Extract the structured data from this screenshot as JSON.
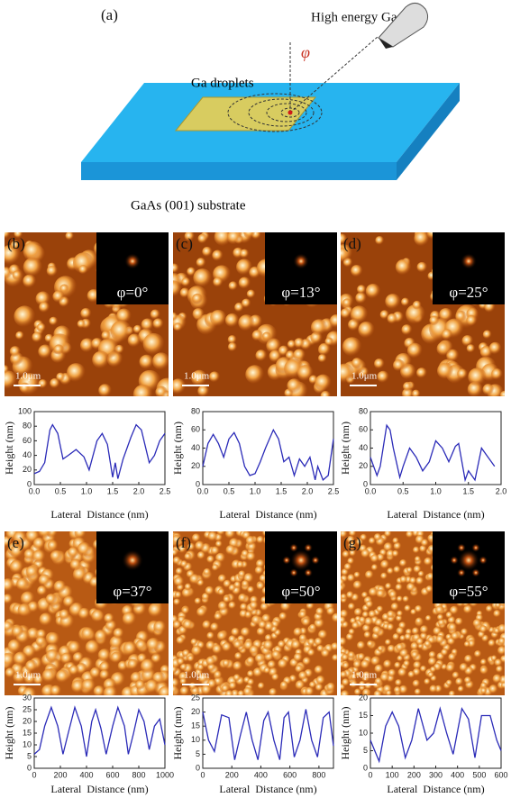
{
  "schematic": {
    "label": "(a)",
    "ion": "High energy Ga ion",
    "droplets": "Ga droplets",
    "angle": "φ",
    "substrate": "GaAs (001) substrate"
  },
  "images": [
    {
      "label": "(b)",
      "angle": "φ=0°",
      "scale": "1.0μm"
    },
    {
      "label": "(c)",
      "angle": "φ=13°",
      "scale": "1.0μm"
    },
    {
      "label": "(d)",
      "angle": "φ=25°",
      "scale": "1.0μm"
    },
    {
      "label": "(e)",
      "angle": "φ=37°",
      "scale": "1.0μm"
    },
    {
      "label": "(f)",
      "angle": "φ=50°",
      "scale": "1.0μm"
    },
    {
      "label": "(g)",
      "angle": "φ=55°",
      "scale": "1.0μm"
    }
  ],
  "chart_data": [
    {
      "type": "line",
      "x_label": "Lateral  Distance (nm)",
      "y_label": "Height (nm)",
      "color": "#2b2bb8",
      "x": [
        0,
        0.1,
        0.2,
        0.3,
        0.35,
        0.45,
        0.55,
        0.65,
        0.8,
        0.95,
        1.05,
        1.2,
        1.3,
        1.4,
        1.5,
        1.55,
        1.6,
        1.7,
        1.85,
        1.95,
        2.05,
        2.2,
        2.3,
        2.4,
        2.5
      ],
      "values": [
        15,
        18,
        30,
        75,
        82,
        70,
        35,
        40,
        48,
        38,
        20,
        60,
        70,
        55,
        10,
        30,
        8,
        35,
        65,
        82,
        75,
        30,
        40,
        60,
        70
      ],
      "xlim": [
        0,
        2.5
      ],
      "xticks": [
        {
          "value": 0,
          "label": "0.0"
        },
        0.5,
        {
          "value": 1,
          "label": "1.0"
        },
        1.5,
        {
          "value": 2,
          "label": "2.0"
        },
        2.5
      ],
      "ylim": [
        0,
        100
      ],
      "yticks": [
        0,
        20,
        40,
        60,
        80,
        100
      ]
    },
    {
      "type": "line",
      "x_label": "Lateral  Distance (nm)",
      "y_label": "Height (nm)",
      "color": "#2b2bb8",
      "x": [
        0,
        0.1,
        0.2,
        0.3,
        0.4,
        0.5,
        0.6,
        0.7,
        0.8,
        0.9,
        1.0,
        1.1,
        1.2,
        1.35,
        1.45,
        1.55,
        1.65,
        1.75,
        1.85,
        1.95,
        2.05,
        2.15,
        2.2,
        2.3,
        2.4,
        2.5
      ],
      "values": [
        20,
        45,
        55,
        45,
        30,
        50,
        57,
        45,
        20,
        10,
        12,
        25,
        40,
        60,
        50,
        25,
        30,
        10,
        28,
        20,
        30,
        5,
        20,
        5,
        10,
        50
      ],
      "xlim": [
        0,
        2.5
      ],
      "xticks": [
        {
          "value": 0,
          "label": "0.0"
        },
        0.5,
        {
          "value": 1,
          "label": "1.0"
        },
        1.5,
        {
          "value": 2,
          "label": "2.0"
        },
        2.5
      ],
      "ylim": [
        0,
        80
      ],
      "yticks": [
        0,
        20,
        40,
        60,
        80
      ]
    },
    {
      "type": "line",
      "x_label": "Lateral  Distance (nm)",
      "y_label": "Height (nm)",
      "color": "#2b2bb8",
      "x": [
        0,
        0.05,
        0.1,
        0.15,
        0.25,
        0.3,
        0.35,
        0.45,
        0.5,
        0.6,
        0.7,
        0.8,
        0.9,
        1.0,
        1.1,
        1.2,
        1.3,
        1.35,
        1.45,
        1.5,
        1.6,
        1.7,
        1.8,
        1.9
      ],
      "values": [
        30,
        20,
        10,
        20,
        65,
        60,
        40,
        8,
        20,
        40,
        30,
        15,
        25,
        48,
        40,
        25,
        42,
        45,
        5,
        15,
        5,
        40,
        30,
        20
      ],
      "xlim": [
        0,
        2
      ],
      "xticks": [
        {
          "value": 0,
          "label": "0.0"
        },
        0.5,
        {
          "value": 1,
          "label": "1.0"
        },
        1.5,
        {
          "value": 2,
          "label": "2.0"
        }
      ],
      "ylim": [
        0,
        80
      ],
      "yticks": [
        0,
        20,
        40,
        60,
        80
      ]
    },
    {
      "type": "line",
      "x_label": "Lateral  Distance (nm)",
      "y_label": "Height (nm)",
      "color": "#2b2bb8",
      "x": [
        0,
        40,
        80,
        130,
        180,
        220,
        260,
        310,
        360,
        400,
        440,
        470,
        510,
        550,
        600,
        640,
        690,
        720,
        760,
        800,
        840,
        880,
        920,
        960,
        1000
      ],
      "values": [
        6,
        8,
        18,
        26,
        18,
        6,
        15,
        26,
        18,
        5,
        20,
        25,
        17,
        6,
        18,
        26,
        18,
        6,
        15,
        25,
        20,
        8,
        18,
        21,
        10
      ],
      "xlim": [
        0,
        1000
      ],
      "xticks": [
        0,
        200,
        400,
        600,
        800,
        1000
      ],
      "ylim": [
        0,
        30
      ],
      "yticks": [
        0,
        5,
        10,
        15,
        20,
        25,
        30
      ]
    },
    {
      "type": "line",
      "x_label": "Lateral  Distance (nm)",
      "y_label": "Height (nm)",
      "color": "#2b2bb8",
      "x": [
        0,
        40,
        80,
        130,
        180,
        220,
        260,
        300,
        340,
        380,
        420,
        450,
        490,
        530,
        560,
        590,
        630,
        670,
        710,
        750,
        790,
        830,
        870,
        900
      ],
      "values": [
        20,
        10,
        6,
        19,
        18,
        3,
        12,
        20,
        10,
        3,
        17,
        20,
        10,
        3,
        18,
        20,
        4,
        10,
        21,
        10,
        4,
        18,
        20,
        8
      ],
      "xlim": [
        0,
        900
      ],
      "xticks": [
        0,
        200,
        400,
        600,
        800
      ],
      "ylim": [
        0,
        25
      ],
      "yticks": [
        0,
        5,
        10,
        15,
        20,
        25
      ]
    },
    {
      "type": "line",
      "x_label": "Lateral  Distance (nm)",
      "y_label": "Height (nm)",
      "color": "#2b2bb8",
      "x": [
        0,
        20,
        40,
        70,
        100,
        130,
        160,
        190,
        220,
        260,
        290,
        320,
        350,
        380,
        420,
        450,
        480,
        510,
        550,
        580,
        600
      ],
      "values": [
        8,
        5,
        2,
        12,
        16,
        12,
        3,
        8,
        17,
        8,
        10,
        17,
        10,
        4,
        17,
        14,
        3,
        15,
        15,
        8,
        5
      ],
      "xlim": [
        0,
        600
      ],
      "xticks": [
        0,
        100,
        200,
        300,
        400,
        500,
        600
      ],
      "ylim": [
        0,
        20
      ],
      "yticks": [
        0,
        5,
        10,
        15,
        20
      ]
    }
  ]
}
